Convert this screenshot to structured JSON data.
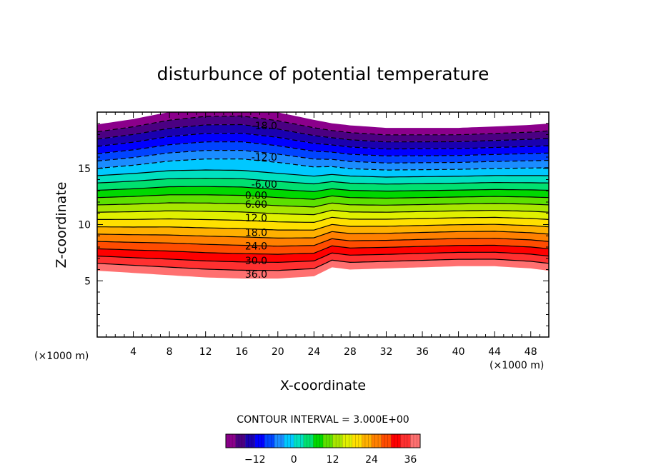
{
  "chart_data": {
    "type": "contour",
    "title": "disturbunce of potential temperature",
    "xlabel": "X-coordinate",
    "ylabel": "Z-coordinate",
    "x_unit": "(×1000 m)",
    "y_unit": "(×1000 m)",
    "xlim": [
      0,
      50
    ],
    "ylim": [
      0,
      20
    ],
    "x_ticks": [
      4,
      8,
      12,
      16,
      20,
      24,
      28,
      32,
      36,
      40,
      44,
      48
    ],
    "y_ticks": [
      5,
      10,
      15
    ],
    "contour_interval_label": "CONTOUR INTERVAL = 3.000E+00",
    "contour_interval": 3.0,
    "levels": [
      -21,
      -18,
      -15,
      -12,
      -9,
      -6,
      -3,
      0,
      3,
      6,
      9,
      12,
      15,
      18,
      21,
      24,
      27,
      30,
      33,
      36,
      39
    ],
    "contour_labels": [
      {
        "text": "-18.0",
        "x": 18.5,
        "z": 18.8
      },
      {
        "text": "-12.0",
        "x": 18.5,
        "z": 16.0
      },
      {
        "text": "-6.00",
        "x": 18.5,
        "z": 13.6
      },
      {
        "text": "0.00",
        "x": 17.6,
        "z": 12.6
      },
      {
        "text": "6.00",
        "x": 17.6,
        "z": 11.8
      },
      {
        "text": "12.0",
        "x": 17.6,
        "z": 10.6
      },
      {
        "text": "18.0",
        "x": 17.6,
        "z": 9.3
      },
      {
        "text": "24.0",
        "x": 17.6,
        "z": 8.1
      },
      {
        "text": "30.0",
        "x": 17.6,
        "z": 6.8
      },
      {
        "text": "36.0",
        "x": 17.6,
        "z": 5.6
      }
    ],
    "profiles": {
      "x": [
        0,
        4,
        8,
        12,
        16,
        20,
        24,
        26,
        28,
        32,
        36,
        40,
        44,
        48,
        50
      ],
      "top_z": [
        18.9,
        19.3,
        19.8,
        20.0,
        20.0,
        19.6,
        19.1,
        18.9,
        18.8,
        18.6,
        18.6,
        18.6,
        18.7,
        18.8,
        18.9
      ],
      "upper_shape": [
        0,
        0.2,
        0.5,
        0.9,
        1.0,
        0.9,
        0.5,
        0.25,
        0.05,
        0,
        0,
        0,
        0.05,
        0.15,
        0.2
      ],
      "bottom_z": [
        5.9,
        5.7,
        5.5,
        5.3,
        5.2,
        5.2,
        5.4,
        6.2,
        6.0,
        6.1,
        6.2,
        6.3,
        6.3,
        6.1,
        5.9
      ]
    },
    "colorbar": {
      "range": [
        -21,
        39
      ],
      "tick_values": [
        -12,
        0,
        12,
        24,
        36
      ],
      "tick_labels": [
        "−12",
        "0",
        "12",
        "24",
        "36"
      ]
    },
    "colors": [
      "#8b008b",
      "#4b0082",
      "#1a00b0",
      "#0000ff",
      "#0044ff",
      "#1a8cff",
      "#00c8ff",
      "#00e0c0",
      "#00e070",
      "#00d800",
      "#5ce000",
      "#a8e600",
      "#e0f000",
      "#ffe000",
      "#ffb000",
      "#ff8000",
      "#ff4c00",
      "#ff0000",
      "#ff3030",
      "#ff7070",
      "#ffb0b0"
    ]
  }
}
